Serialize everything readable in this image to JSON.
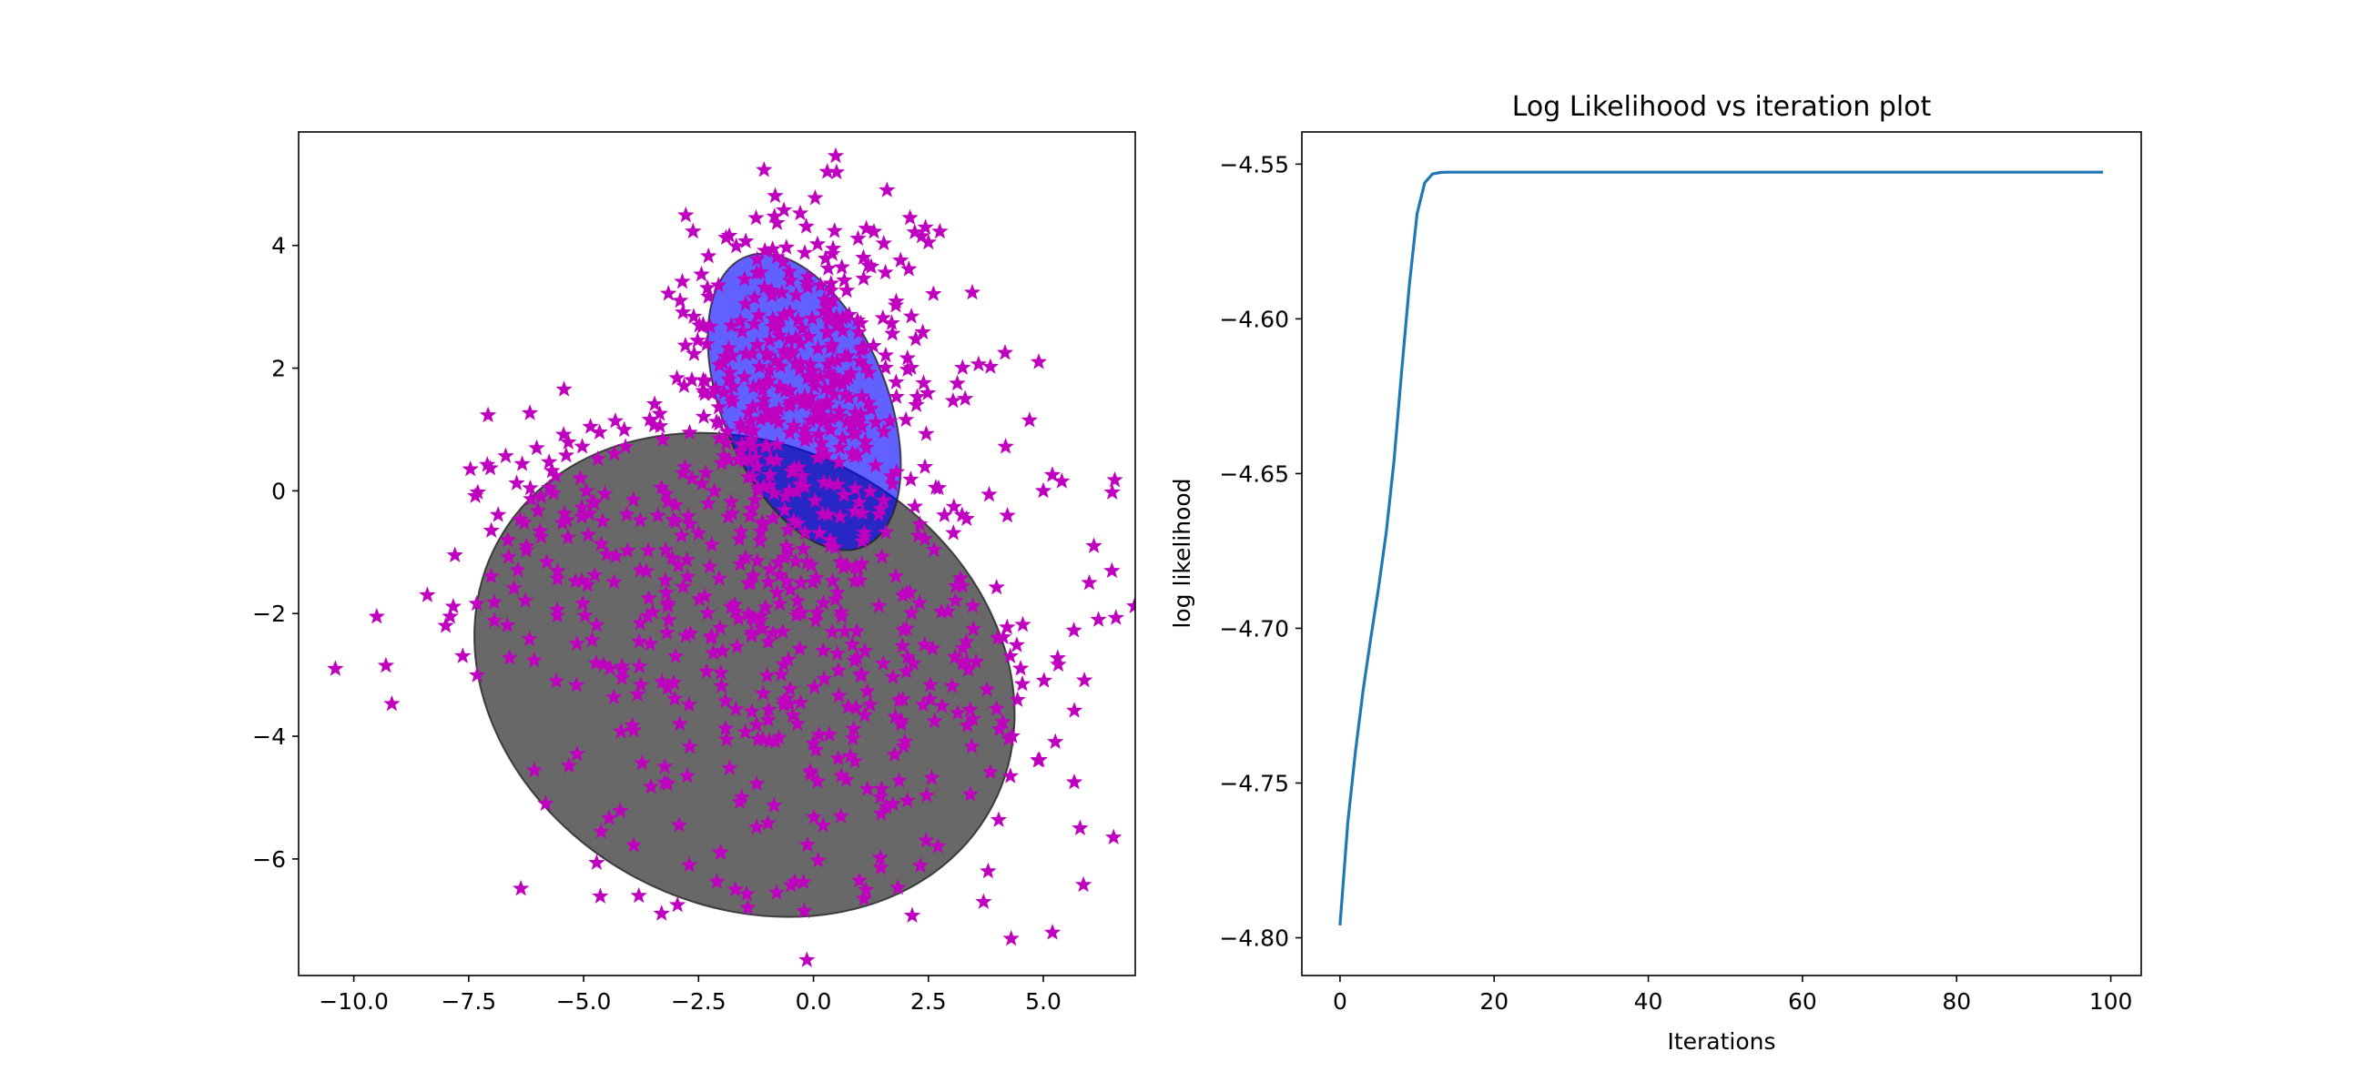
{
  "chart_data": [
    {
      "type": "scatter",
      "title": "",
      "xlabel": "",
      "ylabel": "",
      "xlim": [
        -11.2,
        7.0
      ],
      "ylim": [
        -7.9,
        5.85
      ],
      "x_ticks": [
        -10.0,
        -7.5,
        -5.0,
        -2.5,
        0.0,
        2.5,
        5.0
      ],
      "x_tick_labels": [
        "−10.0",
        "−7.5",
        "−5.0",
        "−2.5",
        "0.0",
        "2.5",
        "5.0"
      ],
      "y_ticks": [
        4,
        2,
        0,
        -2,
        -4,
        -6
      ],
      "y_tick_labels": [
        "4",
        "2",
        "0",
        "−2",
        "−4",
        "−6"
      ],
      "grid": false,
      "marker": "star",
      "marker_color": "#bf00bf",
      "ellipses": [
        {
          "center": [
            -1.5,
            -3.0
          ],
          "semi_axes": [
            6.1,
            3.75
          ],
          "angle_deg": -28,
          "color": "#4d4d4d",
          "opacity": 0.85
        },
        {
          "center": [
            -0.2,
            1.45
          ],
          "semi_axes": [
            1.8,
            2.55
          ],
          "angle_deg": 22,
          "color": "#0000ff",
          "opacity": 0.62
        }
      ],
      "clusters": [
        {
          "center": [
            -0.3,
            1.8
          ],
          "spread": [
            1.45,
            1.45
          ],
          "count": 380
        },
        {
          "center": [
            0.0,
            -2.6
          ],
          "spread": [
            3.2,
            1.95
          ],
          "count": 420
        },
        {
          "center": [
            -5.5,
            -0.5
          ],
          "spread": [
            1.3,
            0.9
          ],
          "count": 70
        }
      ],
      "sample_points": [
        [
          0.3,
          5.2
        ],
        [
          1.6,
          4.9
        ],
        [
          -10.4,
          -2.9
        ],
        [
          -9.5,
          -2.05
        ],
        [
          -9.3,
          -2.85
        ],
        [
          -8.4,
          -1.7
        ],
        [
          -8.0,
          -2.2
        ],
        [
          -7.9,
          -2.05
        ],
        [
          -7.8,
          -1.05
        ],
        [
          -3.8,
          -6.6
        ],
        [
          -2.7,
          -6.1
        ],
        [
          -1.7,
          -6.5
        ],
        [
          -0.8,
          -6.55
        ],
        [
          -0.2,
          -6.85
        ],
        [
          1.0,
          -6.35
        ],
        [
          1.1,
          -6.65
        ],
        [
          3.7,
          -6.7
        ],
        [
          3.8,
          -6.2
        ],
        [
          4.3,
          -7.3
        ],
        [
          5.2,
          -7.2
        ],
        [
          5.8,
          -5.5
        ],
        [
          6.1,
          -0.9
        ],
        [
          6.2,
          -2.1
        ],
        [
          6.0,
          -1.5
        ],
        [
          5.0,
          0.0
        ],
        [
          4.7,
          1.15
        ],
        [
          4.9,
          2.1
        ],
        [
          3.3,
          1.5
        ],
        [
          2.5,
          4.05
        ],
        [
          2.1,
          4.45
        ],
        [
          -2.9,
          3.1
        ],
        [
          -1.5,
          3.45
        ]
      ],
      "points_note": ""
    },
    {
      "type": "line",
      "title": "Log Likelihood vs iteration plot",
      "xlabel": "Iterations",
      "ylabel": "log likelihood",
      "xlim": [
        -4.95,
        103.95
      ],
      "ylim": [
        -4.8122,
        -4.5396
      ],
      "x_ticks": [
        0,
        20,
        40,
        60,
        80,
        100
      ],
      "x_tick_labels": [
        "0",
        "20",
        "40",
        "60",
        "80",
        "100"
      ],
      "y_ticks": [
        -4.55,
        -4.6,
        -4.65,
        -4.7,
        -4.75,
        -4.8
      ],
      "y_tick_labels": [
        "−4.55",
        "−4.60",
        "−4.65",
        "−4.70",
        "−4.75",
        "−4.80"
      ],
      "grid": false,
      "series": [
        {
          "name": "",
          "color": "#1f77b4",
          "x": [
            0,
            1,
            2,
            3,
            4,
            5,
            6,
            7,
            8,
            9,
            10,
            11,
            12,
            13,
            14,
            15,
            20,
            40,
            60,
            80,
            99
          ],
          "y": [
            -4.796,
            -4.763,
            -4.74,
            -4.72,
            -4.703,
            -4.687,
            -4.669,
            -4.646,
            -4.617,
            -4.589,
            -4.566,
            -4.556,
            -4.5532,
            -4.5527,
            -4.5526,
            -4.5526,
            -4.5526,
            -4.5526,
            -4.5526,
            -4.5526,
            -4.5526
          ]
        }
      ]
    }
  ]
}
